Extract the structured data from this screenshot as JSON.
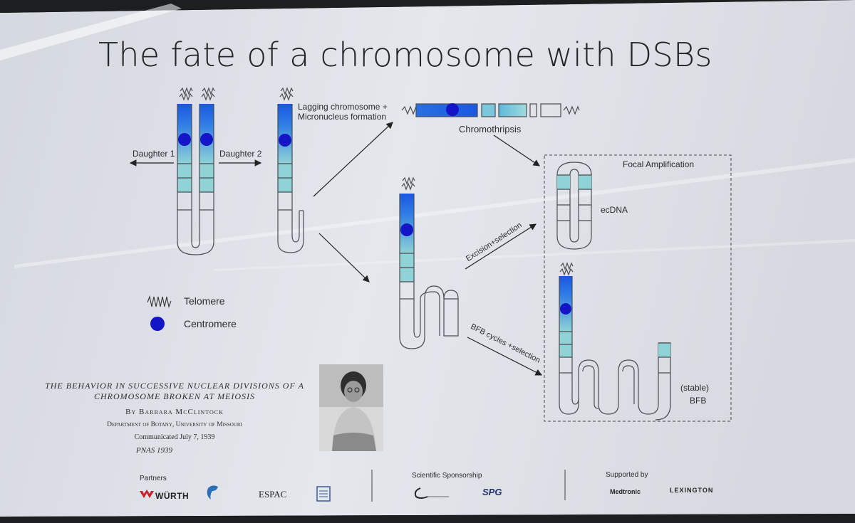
{
  "title": "The fate of a chromosome with DSBs",
  "labels": {
    "daughter1": "Daughter 1",
    "daughter2": "Daughter 2",
    "lagging": "Lagging chromosome + Micronucleus formation",
    "chromothripsis": "Chromothripsis",
    "focal_amplification": "Focal Amplification",
    "ecdna": "ecDNA",
    "excision": "Excision+selection",
    "bfb_cycles": "BFB cycles +selection",
    "stable": "(stable)",
    "bfb": "BFB"
  },
  "legend": {
    "telomere": "Telomere",
    "centromere": "Centromere"
  },
  "citation": {
    "title": "THE BEHAVIOR IN SUCCESSIVE NUCLEAR DIVISIONS OF A CHROMOSOME BROKEN AT MEIOSIS",
    "author": "By Barbara McClintock",
    "department": "Department of Botany, University of Missouri",
    "communicated": "Communicated July 7, 1939",
    "journal": "PNAS 1939"
  },
  "footer": {
    "partners_label": "Partners",
    "sponsorship_label": "Scientific Sponsorship",
    "supported_label": "Supported by",
    "partners": [
      "WÜRTH",
      "ESPAC"
    ],
    "sponsors": [
      "SPG"
    ],
    "supporters": [
      "Medtronic",
      "LEXINGTON"
    ]
  },
  "colors": {
    "centromere": "#1515c8",
    "blue_dark": "#1a57e0",
    "blue_light": "#8fd3d6",
    "outline": "#4a4d52"
  }
}
